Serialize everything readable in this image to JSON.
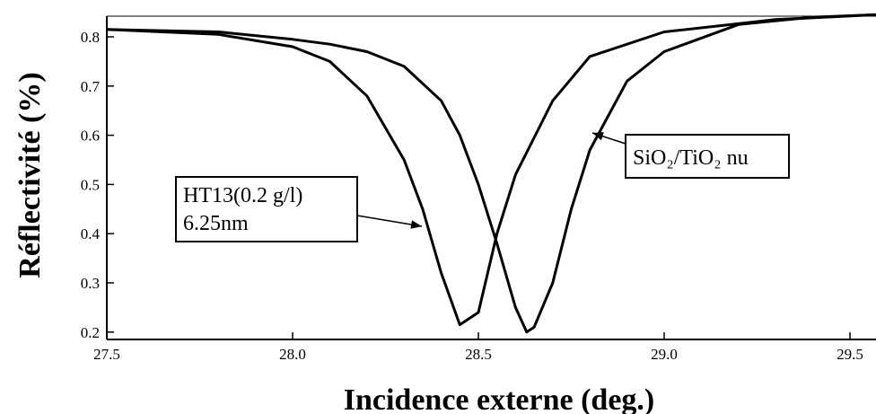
{
  "chart_data": {
    "type": "line",
    "x_label": "Incidence externe (deg.)",
    "y_label": "Réflectivité (%)",
    "xlim": [
      27.5,
      29.57
    ],
    "ylim": [
      0.185,
      0.842
    ],
    "xticks": [
      27.5,
      {
        "value": 28,
        "label": "28.0"
      },
      28.5,
      {
        "value": 29,
        "label": "29.0"
      },
      29.5
    ],
    "yticks": [
      0.2,
      0.3,
      0.4,
      0.5,
      0.6,
      0.7,
      0.8
    ],
    "annotations": [
      [
        "HT13(0.2 g/l)",
        "6.25nm"
      ],
      [
        "SiO₂/TiO₂ nu"
      ]
    ],
    "series": [
      {
        "color": "#000000",
        "x": [
          27.5,
          27.8,
          28.0,
          28.1,
          28.2,
          28.3,
          28.35,
          28.4,
          28.45,
          28.5,
          28.55,
          28.6,
          28.7,
          28.8,
          29.0,
          29.3,
          29.57
        ],
        "values": [
          0.815,
          0.805,
          0.78,
          0.75,
          0.68,
          0.55,
          0.45,
          0.32,
          0.215,
          0.24,
          0.4,
          0.52,
          0.67,
          0.76,
          0.81,
          0.835,
          0.845
        ]
      },
      {
        "color": "#000000",
        "x": [
          27.5,
          27.8,
          28.0,
          28.1,
          28.2,
          28.3,
          28.4,
          28.45,
          28.5,
          28.55,
          28.6,
          28.63,
          28.65,
          28.7,
          28.75,
          28.8,
          28.9,
          29.0,
          29.2,
          29.4,
          29.57
        ],
        "values": [
          0.815,
          0.81,
          0.795,
          0.785,
          0.77,
          0.74,
          0.67,
          0.6,
          0.5,
          0.38,
          0.25,
          0.2,
          0.21,
          0.3,
          0.45,
          0.57,
          0.71,
          0.77,
          0.825,
          0.84,
          0.845
        ]
      }
    ]
  }
}
